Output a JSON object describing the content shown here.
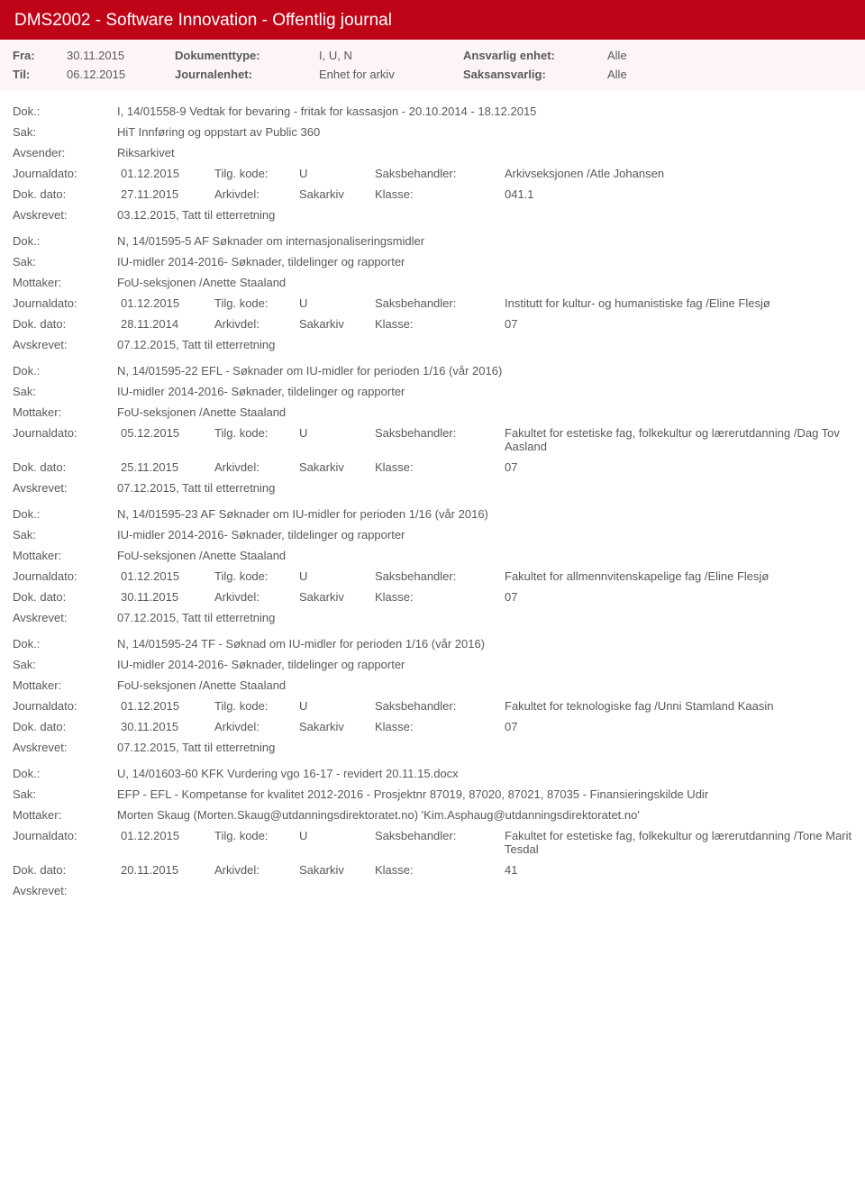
{
  "header": {
    "title": "DMS2002 - Software Innovation - Offentlig journal"
  },
  "filter": {
    "fra_label": "Fra:",
    "fra_value": "30.11.2015",
    "til_label": "Til:",
    "til_value": "06.12.2015",
    "dokumenttype_label": "Dokumenttype:",
    "dokumenttype_value": "I, U, N",
    "journalenhet_label": "Journalenhet:",
    "journalenhet_value": "Enhet for arkiv",
    "ansvarlig_label": "Ansvarlig enhet:",
    "ansvarlig_value": "Alle",
    "saksansvarlig_label": "Saksansvarlig:",
    "saksansvarlig_value": "Alle"
  },
  "labels": {
    "dok": "Dok.:",
    "sak": "Sak:",
    "avsender": "Avsender:",
    "mottaker": "Mottaker:",
    "journaldato": "Journaldato:",
    "tilgkode": "Tilg. kode:",
    "saksbehandler": "Saksbehandler:",
    "dokdato": "Dok. dato:",
    "arkivdel": "Arkivdel:",
    "klasse": "Klasse:",
    "avskrevet": "Avskrevet:"
  },
  "entries": [
    {
      "dok": "I, 14/01558-9 Vedtak for bevaring - fritak for kassasjon - 20.10.2014 - 18.12.2015",
      "sak": "HiT Innføring og oppstart av Public 360",
      "party_label": "Avsender:",
      "party_value": "Riksarkivet",
      "journaldato": "01.12.2015",
      "tilgkode": "U",
      "saksbehandler": "Arkivseksjonen /Atle Johansen",
      "dokdato": "27.11.2015",
      "arkivdel": "Sakarkiv",
      "klasse": "041.1",
      "avskrevet": "03.12.2015, Tatt til etterretning"
    },
    {
      "dok": "N, 14/01595-5 AF Søknader om internasjonaliseringsmidler",
      "sak": "IU-midler 2014-2016- Søknader, tildelinger og rapporter",
      "party_label": "Mottaker:",
      "party_value": "FoU-seksjonen /Anette Staaland",
      "journaldato": "01.12.2015",
      "tilgkode": "U",
      "saksbehandler": "Institutt for kultur- og humanistiske fag /Eline Flesjø",
      "dokdato": "28.11.2014",
      "arkivdel": "Sakarkiv",
      "klasse": "07",
      "avskrevet": "07.12.2015, Tatt til etterretning"
    },
    {
      "dok": "N, 14/01595-22 EFL - Søknader om IU-midler for perioden 1/16 (vår 2016)",
      "sak": "IU-midler 2014-2016- Søknader, tildelinger og rapporter",
      "party_label": "Mottaker:",
      "party_value": "FoU-seksjonen /Anette Staaland",
      "journaldato": "05.12.2015",
      "tilgkode": "U",
      "saksbehandler": "Fakultet for estetiske fag, folkekultur og lærerutdanning /Dag Tov Aasland",
      "dokdato": "25.11.2015",
      "arkivdel": "Sakarkiv",
      "klasse": "07",
      "avskrevet": "07.12.2015, Tatt til etterretning"
    },
    {
      "dok": "N, 14/01595-23 AF Søknader om IU-midler for perioden 1/16 (vår 2016)",
      "sak": "IU-midler 2014-2016- Søknader, tildelinger og rapporter",
      "party_label": "Mottaker:",
      "party_value": "FoU-seksjonen /Anette Staaland",
      "journaldato": "01.12.2015",
      "tilgkode": "U",
      "saksbehandler": "Fakultet for allmennvitenskapelige fag /Eline Flesjø",
      "dokdato": "30.11.2015",
      "arkivdel": "Sakarkiv",
      "klasse": "07",
      "avskrevet": "07.12.2015, Tatt til etterretning"
    },
    {
      "dok": "N, 14/01595-24 TF - Søknad om IU-midler for perioden 1/16 (vår 2016)",
      "sak": "IU-midler 2014-2016- Søknader, tildelinger og rapporter",
      "party_label": "Mottaker:",
      "party_value": "FoU-seksjonen /Anette Staaland",
      "journaldato": "01.12.2015",
      "tilgkode": "U",
      "saksbehandler": "Fakultet for teknologiske fag /Unni Stamland Kaasin",
      "dokdato": "30.11.2015",
      "arkivdel": "Sakarkiv",
      "klasse": "07",
      "avskrevet": "07.12.2015, Tatt til etterretning"
    },
    {
      "dok": "U, 14/01603-60 KFK Vurdering vgo 16-17 - revidert 20.11.15.docx",
      "sak": "EFP - EFL - Kompetanse for kvalitet 2012-2016 - Prosjektnr 87019, 87020, 87021, 87035 - Finansieringskilde Udir",
      "party_label": "Mottaker:",
      "party_value": "Morten Skaug (Morten.Skaug@utdanningsdirektoratet.no) 'Kim.Asphaug@utdanningsdirektoratet.no'",
      "journaldato": "01.12.2015",
      "tilgkode": "U",
      "saksbehandler": "Fakultet for estetiske fag, folkekultur og lærerutdanning /Tone Marit Tesdal",
      "dokdato": "20.11.2015",
      "arkivdel": "Sakarkiv",
      "klasse": "41",
      "avskrevet": ""
    }
  ]
}
